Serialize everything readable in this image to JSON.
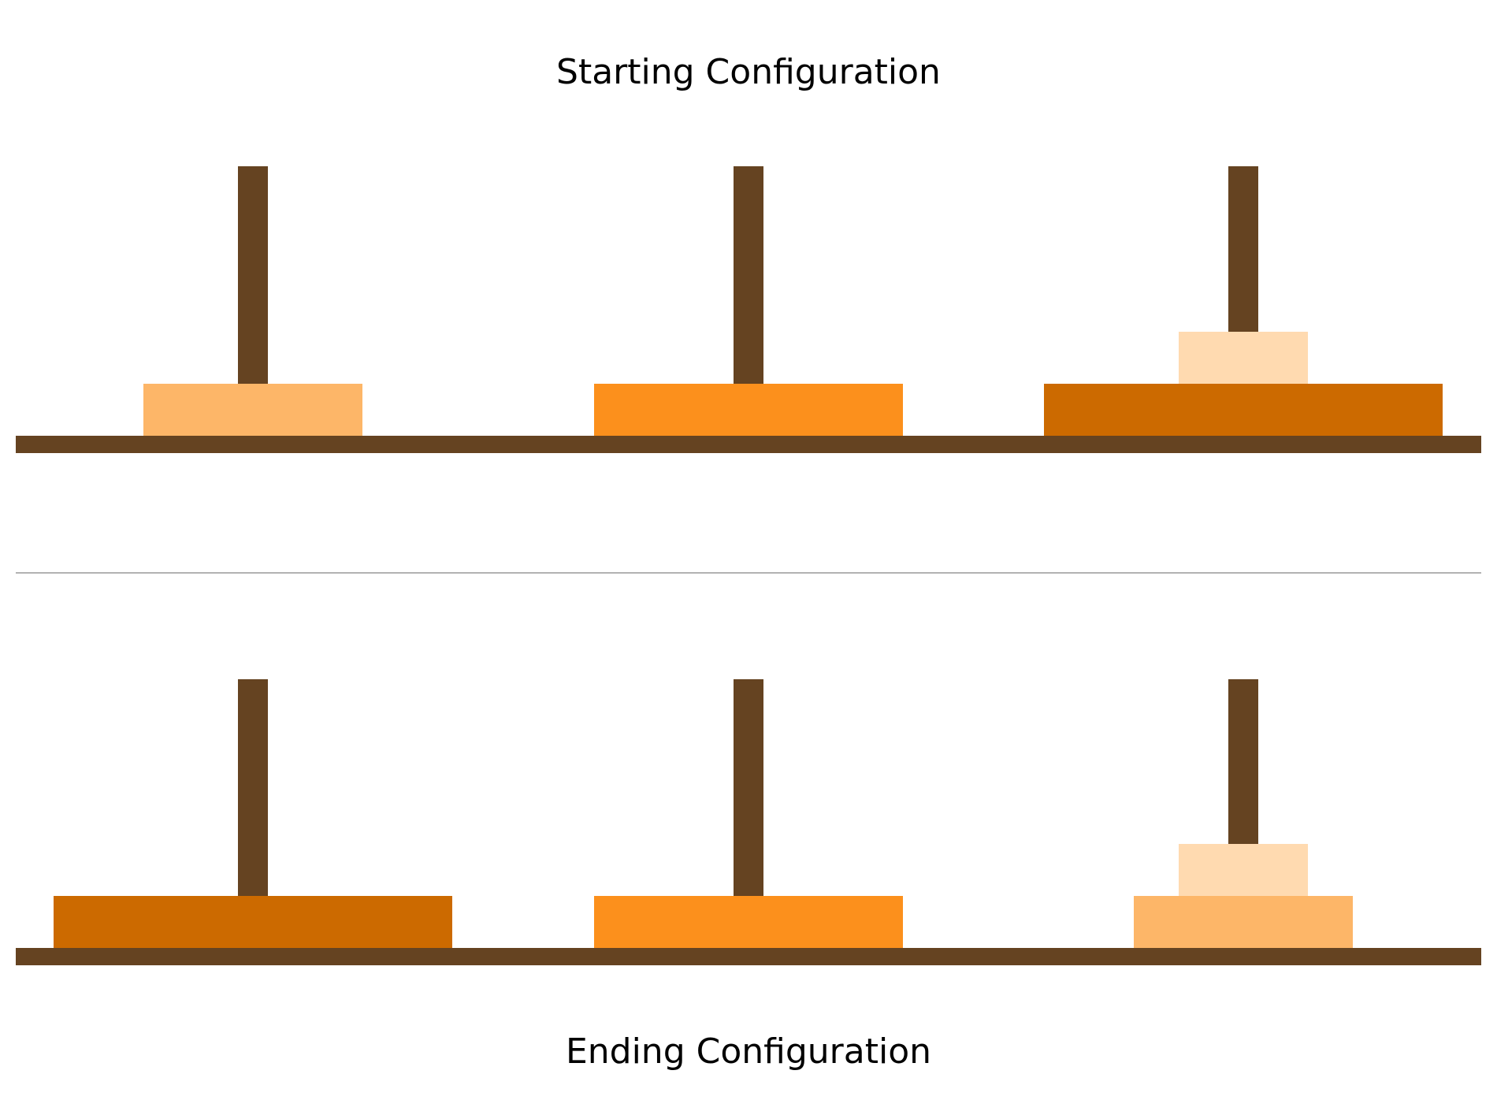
{
  "colors": {
    "wood": "#654321",
    "divider": "#999999",
    "disk_sizes": {
      "1": "#FFDAB0",
      "2": "#FDB668",
      "3": "#FC901C",
      "4": "#CC6A00"
    }
  },
  "configurations": [
    {
      "title": "Starting Configuration",
      "pegs": [
        [
          2
        ],
        [
          3
        ],
        [
          4,
          1
        ]
      ]
    },
    {
      "title": "Ending Configuration",
      "pegs": [
        [
          4
        ],
        [
          3
        ],
        [
          2,
          1
        ]
      ]
    }
  ]
}
